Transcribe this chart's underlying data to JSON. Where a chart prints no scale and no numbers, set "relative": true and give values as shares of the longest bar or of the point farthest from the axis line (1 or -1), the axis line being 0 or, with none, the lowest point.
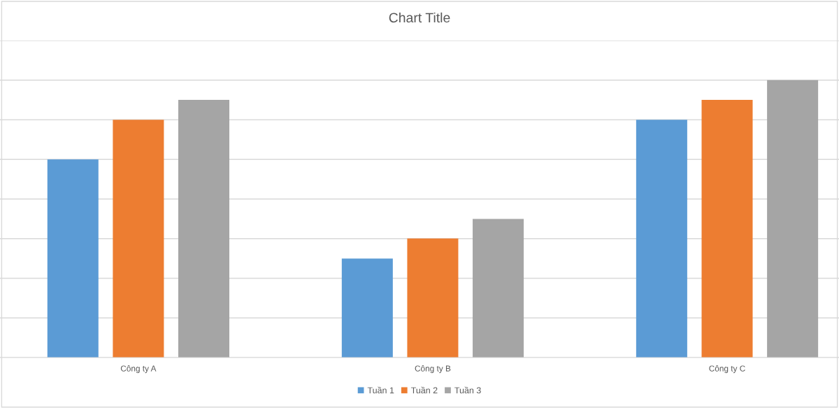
{
  "chart_data": {
    "type": "bar",
    "title": "Chart Title",
    "categories": [
      "Công ty A",
      "Công ty B",
      "Công ty C"
    ],
    "relative": true,
    "series": [
      {
        "name": "Tuần 1",
        "color": "#5b9bd5",
        "values": [
          0.714,
          0.357,
          0.857
        ]
      },
      {
        "name": "Tuần 2",
        "color": "#ed7d31",
        "values": [
          0.857,
          0.429,
          0.929
        ]
      },
      {
        "name": "Tuần 3",
        "color": "#a5a5a5",
        "values": [
          0.929,
          0.5,
          1
        ]
      }
    ],
    "grid": "y",
    "legend": "bottom"
  }
}
